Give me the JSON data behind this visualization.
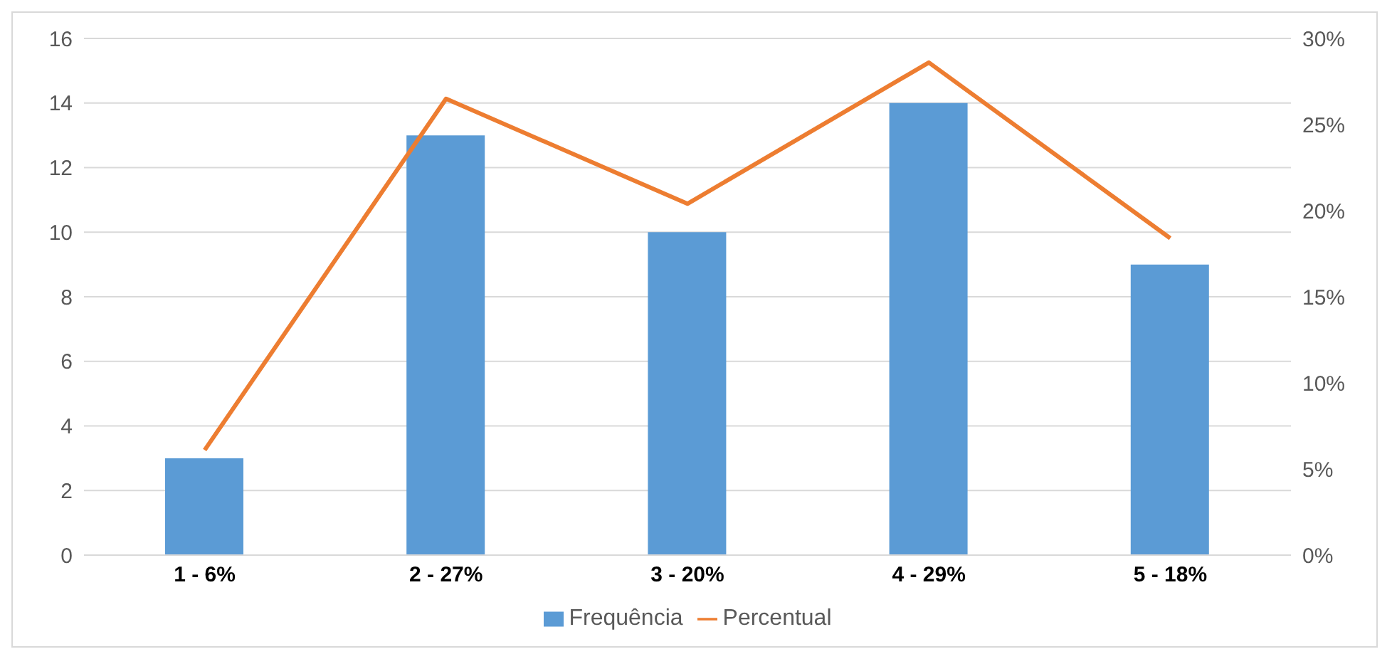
{
  "chart_data": {
    "type": "bar",
    "categories": [
      "1 - 6%",
      "2 - 27%",
      "3 - 20%",
      "4 - 29%",
      "5 - 18%"
    ],
    "series": [
      {
        "name": "Frequência",
        "color": "#5b9bd5",
        "values": [
          3,
          13,
          10,
          14,
          9
        ]
      },
      {
        "name": "Percentual",
        "type": "line",
        "axis": "y2",
        "color": "#ed7d31",
        "values": [
          6.1,
          26.5,
          20.4,
          28.6,
          18.4
        ]
      }
    ],
    "ylim": [
      0,
      16
    ],
    "yticks": [
      0,
      2,
      4,
      6,
      8,
      10,
      12,
      14,
      16
    ],
    "y2lim": [
      0,
      30
    ],
    "y2ticks": [
      {
        "value": 0,
        "label": "0%"
      },
      {
        "value": 5,
        "label": "5%"
      },
      {
        "value": 10,
        "label": "10%"
      },
      {
        "value": 15,
        "label": "15%"
      },
      {
        "value": 20,
        "label": "20%"
      },
      {
        "value": 25,
        "label": "25%"
      },
      {
        "value": 30,
        "label": "30%"
      }
    ],
    "grid": "y",
    "legend": "bottom",
    "marker": "none",
    "line_style": "solid"
  }
}
